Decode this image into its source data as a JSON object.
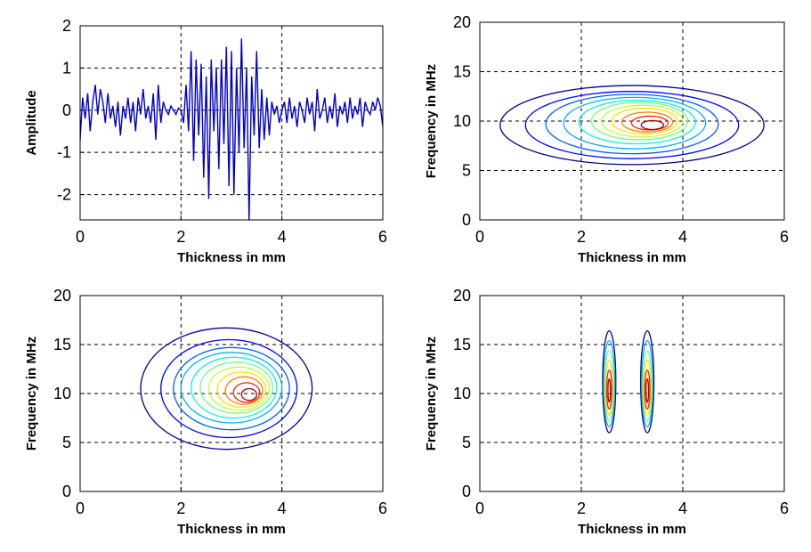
{
  "chart_data": [
    {
      "type": "line",
      "xlabel": "Thickness in mm",
      "ylabel": "Amplitude",
      "xlim": [
        0,
        6
      ],
      "ylim": [
        -2.6,
        2
      ],
      "xticks": [
        "0",
        "2",
        "4",
        "6"
      ],
      "yticks": [
        "-2",
        "-1",
        "0",
        "1",
        "2"
      ],
      "grid": true,
      "series": [
        {
          "color": "#0000cc",
          "x": [
            0.0,
            0.05,
            0.1,
            0.15,
            0.2,
            0.25,
            0.3,
            0.35,
            0.4,
            0.45,
            0.5,
            0.55,
            0.6,
            0.65,
            0.7,
            0.75,
            0.8,
            0.85,
            0.9,
            0.95,
            1.0,
            1.05,
            1.1,
            1.15,
            1.2,
            1.25,
            1.3,
            1.35,
            1.4,
            1.45,
            1.5,
            1.55,
            1.6,
            1.65,
            1.7,
            1.75,
            1.8,
            1.85,
            1.9,
            1.95,
            2.0,
            2.05,
            2.1,
            2.15,
            2.2,
            2.25,
            2.3,
            2.35,
            2.4,
            2.45,
            2.5,
            2.55,
            2.6,
            2.65,
            2.7,
            2.75,
            2.8,
            2.85,
            2.9,
            2.95,
            3.0,
            3.05,
            3.1,
            3.15,
            3.2,
            3.25,
            3.3,
            3.35,
            3.4,
            3.45,
            3.5,
            3.55,
            3.6,
            3.65,
            3.7,
            3.75,
            3.8,
            3.85,
            3.9,
            3.95,
            4.0,
            4.05,
            4.1,
            4.15,
            4.2,
            4.25,
            4.3,
            4.35,
            4.4,
            4.45,
            4.5,
            4.55,
            4.6,
            4.65,
            4.7,
            4.75,
            4.8,
            4.85,
            4.9,
            4.95,
            5.0,
            5.05,
            5.1,
            5.15,
            5.2,
            5.25,
            5.3,
            5.35,
            5.4,
            5.45,
            5.5,
            5.55,
            5.6,
            5.65,
            5.7,
            5.75,
            5.8,
            5.85,
            5.9,
            5.95,
            6.0
          ],
          "y": [
            -0.7,
            0.3,
            -0.2,
            0.4,
            -0.5,
            0.2,
            0.6,
            -0.1,
            0.5,
            0.2,
            -0.3,
            0.4,
            -0.2,
            0.1,
            -0.4,
            0.2,
            -0.6,
            0.1,
            -0.2,
            0.3,
            -0.3,
            0.2,
            -0.5,
            0.3,
            -0.1,
            0.5,
            -0.2,
            0.1,
            -0.3,
            0.4,
            -0.7,
            0.6,
            -0.3,
            0.2,
            0.0,
            -0.1,
            0.1,
            0.0,
            -0.1,
            0.05,
            0.0,
            -0.3,
            0.6,
            -0.5,
            1.4,
            -1.2,
            1.2,
            -0.6,
            1.1,
            -1.6,
            0.8,
            -2.1,
            1.2,
            -0.5,
            1.0,
            -1.4,
            1.2,
            -0.8,
            1.5,
            -1.8,
            1.4,
            -2.0,
            1.0,
            -1.0,
            1.7,
            -0.9,
            1.0,
            -2.6,
            0.8,
            -0.6,
            1.4,
            -0.9,
            0.5,
            -0.7,
            0.3,
            -0.6,
            0.2,
            -0.1,
            0.1,
            -0.3,
            0.0,
            0.2,
            -0.3,
            0.3,
            -0.2,
            0.1,
            -0.4,
            0.2,
            0.0,
            -0.3,
            0.3,
            -0.1,
            0.2,
            -0.5,
            0.5,
            -0.2,
            0.0,
            0.3,
            -0.3,
            0.1,
            -0.2,
            0.4,
            -0.4,
            0.1,
            -0.1,
            0.2,
            -0.3,
            0.3,
            -0.2,
            0.1,
            -0.1,
            0.3,
            -0.4,
            0.2,
            0.0,
            -0.1,
            0.2,
            0.0,
            0.3,
            0.1,
            -0.4
          ]
        }
      ]
    },
    {
      "type": "contour",
      "xlabel": "Thickness in mm",
      "ylabel": "Frequency in MHz",
      "xlim": [
        0,
        6
      ],
      "ylim": [
        0,
        20
      ],
      "xticks": [
        "0",
        "2",
        "4",
        "6"
      ],
      "yticks": [
        "0",
        "5",
        "10",
        "15",
        "20"
      ],
      "grid": true,
      "levels": [
        {
          "color": "#00008f",
          "cx": 3.0,
          "cy": 9.6,
          "rx": 2.6,
          "ry": 4.0
        },
        {
          "color": "#0000ff",
          "cx": 3.0,
          "cy": 9.6,
          "rx": 2.1,
          "ry": 3.4
        },
        {
          "color": "#0060ff",
          "cx": 3.0,
          "cy": 9.7,
          "rx": 1.7,
          "ry": 3.0
        },
        {
          "color": "#00b0ff",
          "cx": 3.05,
          "cy": 9.8,
          "rx": 1.4,
          "ry": 2.6
        },
        {
          "color": "#10f0e0",
          "cx": 3.1,
          "cy": 9.9,
          "rx": 1.15,
          "ry": 2.2
        },
        {
          "color": "#70ff80",
          "cx": 3.15,
          "cy": 10.0,
          "rx": 0.95,
          "ry": 1.9
        },
        {
          "color": "#c0ff30",
          "cx": 3.2,
          "cy": 10.0,
          "rx": 0.8,
          "ry": 1.6
        },
        {
          "color": "#ffe000",
          "cx": 3.25,
          "cy": 10.0,
          "rx": 0.65,
          "ry": 1.3
        },
        {
          "color": "#ff8000",
          "cx": 3.3,
          "cy": 9.9,
          "rx": 0.5,
          "ry": 1.0
        },
        {
          "color": "#ff2000",
          "cx": 3.35,
          "cy": 9.8,
          "rx": 0.36,
          "ry": 0.7
        },
        {
          "color": "#b00000",
          "cx": 3.4,
          "cy": 9.6,
          "rx": 0.22,
          "ry": 0.45
        }
      ]
    },
    {
      "type": "contour",
      "xlabel": "Thickness in mm",
      "ylabel": "Frequency in MHz",
      "xlim": [
        0,
        6
      ],
      "ylim": [
        0,
        20
      ],
      "xticks": [
        "0",
        "2",
        "4",
        "6"
      ],
      "yticks": [
        "0",
        "5",
        "10",
        "15",
        "20"
      ],
      "grid": true,
      "levels": [
        {
          "color": "#00008f",
          "cx": 2.9,
          "cy": 10.5,
          "rx": 1.7,
          "ry": 6.2
        },
        {
          "color": "#0000ff",
          "cx": 2.95,
          "cy": 10.5,
          "rx": 1.35,
          "ry": 5.0
        },
        {
          "color": "#0060ff",
          "cx": 3.0,
          "cy": 10.5,
          "rx": 1.15,
          "ry": 4.2
        },
        {
          "color": "#00b0ff",
          "cx": 3.0,
          "cy": 10.6,
          "rx": 1.0,
          "ry": 3.6
        },
        {
          "color": "#10f0e0",
          "cx": 3.05,
          "cy": 10.6,
          "rx": 0.85,
          "ry": 3.1
        },
        {
          "color": "#70ff80",
          "cx": 3.1,
          "cy": 10.6,
          "rx": 0.72,
          "ry": 2.6
        },
        {
          "color": "#c0ff30",
          "cx": 3.15,
          "cy": 10.5,
          "rx": 0.6,
          "ry": 2.2
        },
        {
          "color": "#ffe000",
          "cx": 3.2,
          "cy": 10.4,
          "rx": 0.48,
          "ry": 1.8
        },
        {
          "color": "#ff8000",
          "cx": 3.25,
          "cy": 10.3,
          "rx": 0.37,
          "ry": 1.4
        },
        {
          "color": "#ff2000",
          "cx": 3.3,
          "cy": 10.1,
          "rx": 0.26,
          "ry": 1.0
        },
        {
          "color": "#b00000",
          "cx": 3.35,
          "cy": 9.9,
          "rx": 0.15,
          "ry": 0.6
        }
      ]
    },
    {
      "type": "contour",
      "xlabel": "Thickness in mm",
      "ylabel": "Frequency in MHz",
      "xlim": [
        0,
        6
      ],
      "ylim": [
        0,
        20
      ],
      "xticks": [
        "0",
        "2",
        "4",
        "6"
      ],
      "yticks": [
        "0",
        "5",
        "10",
        "15",
        "20"
      ],
      "grid": true,
      "levels": [
        {
          "color": "#00008f",
          "cx": 2.55,
          "cy": 11.2,
          "rx": 0.13,
          "ry": 5.2
        },
        {
          "color": "#00b0ff",
          "cx": 2.55,
          "cy": 11.0,
          "rx": 0.11,
          "ry": 4.4
        },
        {
          "color": "#70ff80",
          "cx": 2.55,
          "cy": 10.8,
          "rx": 0.09,
          "ry": 3.6
        },
        {
          "color": "#ffe000",
          "cx": 2.55,
          "cy": 10.6,
          "rx": 0.07,
          "ry": 2.8
        },
        {
          "color": "#ff2000",
          "cx": 2.55,
          "cy": 10.4,
          "rx": 0.05,
          "ry": 2.0
        },
        {
          "color": "#b00000",
          "cx": 2.55,
          "cy": 10.3,
          "rx": 0.025,
          "ry": 1.2
        },
        {
          "color": "#00008f",
          "cx": 3.3,
          "cy": 11.2,
          "rx": 0.13,
          "ry": 5.2
        },
        {
          "color": "#00b0ff",
          "cx": 3.3,
          "cy": 11.0,
          "rx": 0.11,
          "ry": 4.4
        },
        {
          "color": "#70ff80",
          "cx": 3.3,
          "cy": 10.8,
          "rx": 0.09,
          "ry": 3.6
        },
        {
          "color": "#ffe000",
          "cx": 3.3,
          "cy": 10.6,
          "rx": 0.07,
          "ry": 2.8
        },
        {
          "color": "#ff2000",
          "cx": 3.3,
          "cy": 10.4,
          "rx": 0.05,
          "ry": 2.0
        },
        {
          "color": "#b00000",
          "cx": 3.3,
          "cy": 10.3,
          "rx": 0.025,
          "ry": 1.2
        }
      ]
    }
  ]
}
